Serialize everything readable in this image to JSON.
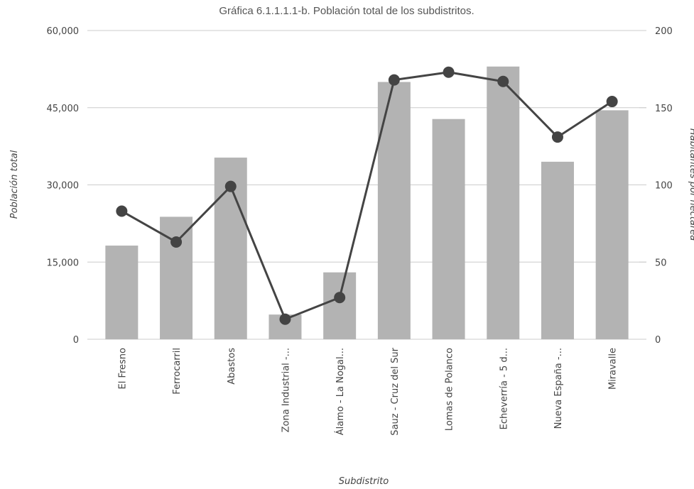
{
  "chart_data": {
    "type": "bar_line",
    "title": "Gráfica 6.1.1.1.1-b. Población total de los subdistritos.",
    "x_label": "Subdistrito",
    "y_label": "Población total",
    "y2_label": "Habitantes por hectárea",
    "categories": [
      "El Fresno",
      "Ferrocarril",
      "Abastos",
      "Zona Industrial -...",
      "Álamo - La Nogal...",
      "Sauz - Cruz del Sur",
      "Lomas de Polanco",
      "Echeverría - 5 d...",
      "Nueva España -...",
      "Miravalle"
    ],
    "series": [
      {
        "type": "bar",
        "color": "#b3b3b3",
        "values": [
          18200,
          23800,
          35300,
          4800,
          13000,
          50000,
          42800,
          53000,
          34500,
          44500
        ]
      },
      {
        "type": "line",
        "axis": "y2",
        "color": "#444444",
        "values": [
          83,
          63,
          99,
          13,
          27,
          168,
          173,
          167,
          131,
          154
        ]
      }
    ],
    "ylim": [
      0,
      60000
    ],
    "yticks": [
      0,
      {
        "value": 15000,
        "label": "15,000"
      },
      {
        "value": 30000,
        "label": "30,000"
      },
      {
        "value": 45000,
        "label": "45,000"
      },
      {
        "value": 60000,
        "label": "60,000"
      }
    ],
    "y2lim": [
      0,
      200
    ],
    "y2ticks": [
      0,
      50,
      100,
      150,
      200
    ],
    "grid": true
  }
}
